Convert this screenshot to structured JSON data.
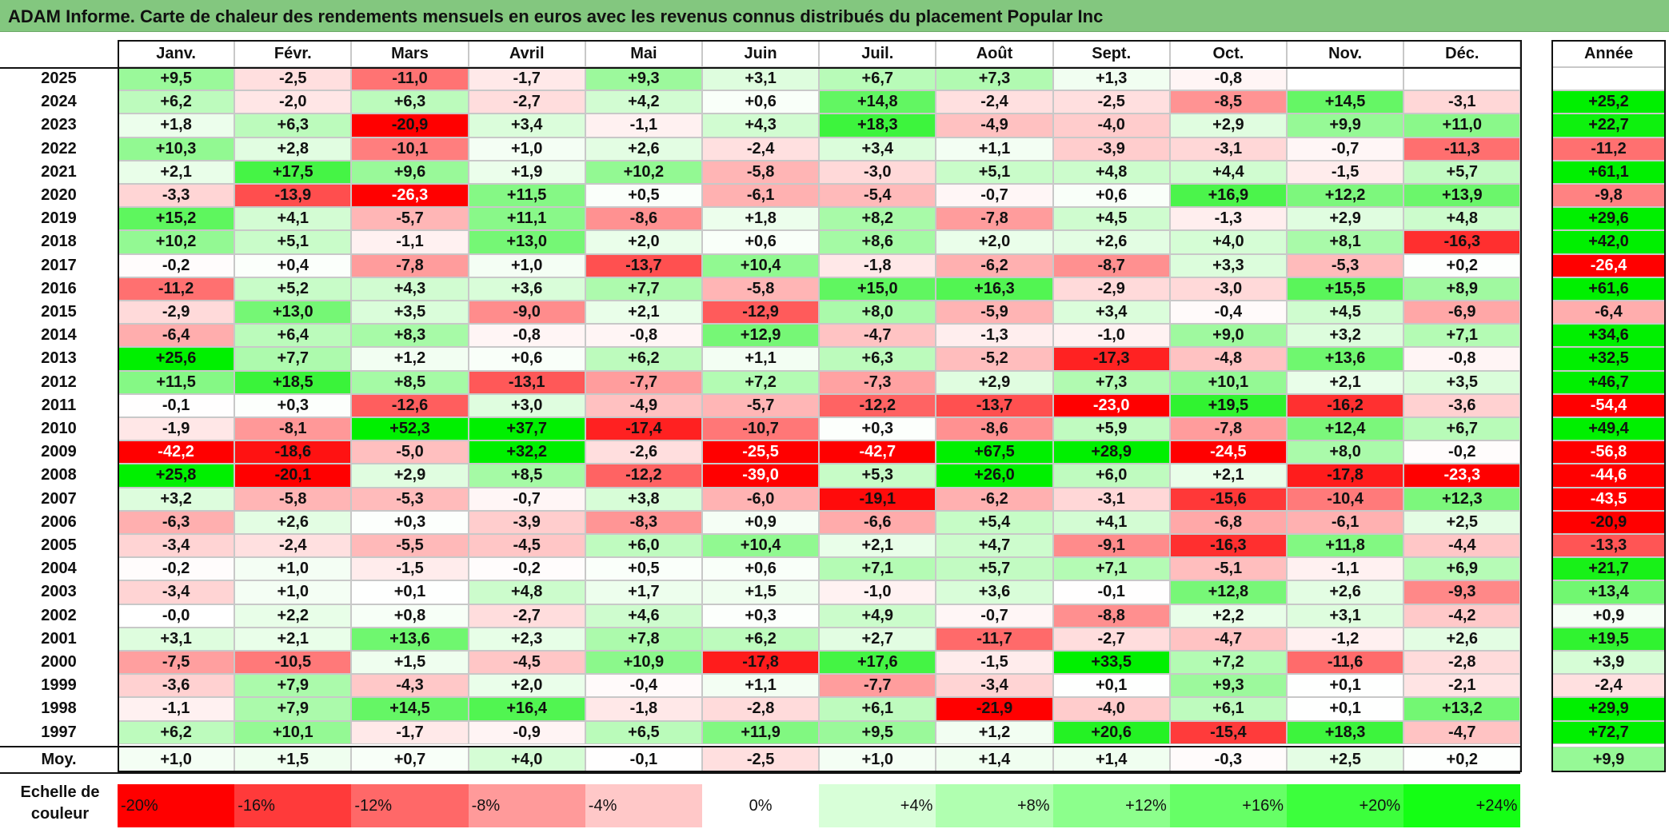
{
  "title": "ADAM Informe. Carte de chaleur des rendements mensuels en euros avec les revenus connus distribués du placement Popular Inc",
  "chart_data": {
    "type": "heatmap",
    "title": "ADAM Informe. Carte de chaleur des rendements mensuels en euros avec les revenus connus distribués du placement Popular Inc",
    "columns": [
      "Janv.",
      "Févr.",
      "Mars",
      "Avril",
      "Mai",
      "Juin",
      "Juil.",
      "Août",
      "Sept.",
      "Oct.",
      "Nov.",
      "Déc."
    ],
    "year_column_label": "Année",
    "rows": [
      {
        "year": "2025",
        "values": [
          "+9,5",
          "-2,5",
          "-11,0",
          "-1,7",
          "+9,3",
          "+3,1",
          "+6,7",
          "+7,3",
          "+1,3",
          "-0,8",
          "",
          ""
        ],
        "annual": ""
      },
      {
        "year": "2024",
        "values": [
          "+6,2",
          "-2,0",
          "+6,3",
          "-2,7",
          "+4,2",
          "+0,6",
          "+14,8",
          "-2,4",
          "-2,5",
          "-8,5",
          "+14,5",
          "-3,1"
        ],
        "annual": "+25,2"
      },
      {
        "year": "2023",
        "values": [
          "+1,8",
          "+6,3",
          "-20,9",
          "+3,4",
          "-1,1",
          "+4,3",
          "+18,3",
          "-4,9",
          "-4,0",
          "+2,9",
          "+9,9",
          "+11,0"
        ],
        "annual": "+22,7"
      },
      {
        "year": "2022",
        "values": [
          "+10,3",
          "+2,8",
          "-10,1",
          "+1,0",
          "+2,6",
          "-2,4",
          "+3,4",
          "+1,1",
          "-3,9",
          "-3,1",
          "-0,7",
          "-11,3"
        ],
        "annual": "-11,2"
      },
      {
        "year": "2021",
        "values": [
          "+2,1",
          "+17,5",
          "+9,6",
          "+1,9",
          "+10,2",
          "-5,8",
          "-3,0",
          "+5,1",
          "+4,8",
          "+4,4",
          "-1,5",
          "+5,7"
        ],
        "annual": "+61,1"
      },
      {
        "year": "2020",
        "values": [
          "-3,3",
          "-13,9",
          "-26,3",
          "+11,5",
          "+0,5",
          "-6,1",
          "-5,4",
          "-0,7",
          "+0,6",
          "+16,9",
          "+12,2",
          "+13,9"
        ],
        "annual": "-9,8"
      },
      {
        "year": "2019",
        "values": [
          "+15,2",
          "+4,1",
          "-5,7",
          "+11,1",
          "-8,6",
          "+1,8",
          "+8,2",
          "-7,8",
          "+4,5",
          "-1,3",
          "+2,9",
          "+4,8"
        ],
        "annual": "+29,6"
      },
      {
        "year": "2018",
        "values": [
          "+10,2",
          "+5,1",
          "-1,1",
          "+13,0",
          "+2,0",
          "+0,6",
          "+8,6",
          "+2,0",
          "+2,6",
          "+4,0",
          "+8,1",
          "-16,3"
        ],
        "annual": "+42,0"
      },
      {
        "year": "2017",
        "values": [
          "-0,2",
          "+0,4",
          "-7,8",
          "+1,0",
          "-13,7",
          "+10,4",
          "-1,8",
          "-6,2",
          "-8,7",
          "+3,3",
          "-5,3",
          "+0,2"
        ],
        "annual": "-26,4"
      },
      {
        "year": "2016",
        "values": [
          "-11,2",
          "+5,2",
          "+4,3",
          "+3,6",
          "+7,7",
          "-5,8",
          "+15,0",
          "+16,3",
          "-2,9",
          "-3,0",
          "+15,5",
          "+8,9"
        ],
        "annual": "+61,6"
      },
      {
        "year": "2015",
        "values": [
          "-2,9",
          "+13,0",
          "+3,5",
          "-9,0",
          "+2,1",
          "-12,9",
          "+8,0",
          "-5,9",
          "+3,4",
          "-0,4",
          "+4,5",
          "-6,9"
        ],
        "annual": "-6,4"
      },
      {
        "year": "2014",
        "values": [
          "-6,4",
          "+6,4",
          "+8,3",
          "-0,8",
          "-0,8",
          "+12,9",
          "-4,7",
          "-1,3",
          "-1,0",
          "+9,0",
          "+3,2",
          "+7,1"
        ],
        "annual": "+34,6"
      },
      {
        "year": "2013",
        "values": [
          "+25,6",
          "+7,7",
          "+1,2",
          "+0,6",
          "+6,2",
          "+1,1",
          "+6,3",
          "-5,2",
          "-17,3",
          "-4,8",
          "+13,6",
          "-0,8"
        ],
        "annual": "+32,5"
      },
      {
        "year": "2012",
        "values": [
          "+11,5",
          "+18,5",
          "+8,5",
          "-13,1",
          "-7,7",
          "+7,2",
          "-7,3",
          "+2,9",
          "+7,3",
          "+10,1",
          "+2,1",
          "+3,5"
        ],
        "annual": "+46,7"
      },
      {
        "year": "2011",
        "values": [
          "-0,1",
          "+0,3",
          "-12,6",
          "+3,0",
          "-4,9",
          "-5,7",
          "-12,2",
          "-13,7",
          "-23,0",
          "+19,5",
          "-16,2",
          "-3,6"
        ],
        "annual": "-54,4"
      },
      {
        "year": "2010",
        "values": [
          "-1,9",
          "-8,1",
          "+52,3",
          "+37,7",
          "-17,4",
          "-10,7",
          "+0,3",
          "-8,6",
          "+5,9",
          "-7,8",
          "+12,4",
          "+6,7"
        ],
        "annual": "+49,4"
      },
      {
        "year": "2009",
        "values": [
          "-42,2",
          "-18,6",
          "-5,0",
          "+32,2",
          "-2,6",
          "-25,5",
          "-42,7",
          "+67,5",
          "+28,9",
          "-24,5",
          "+8,0",
          "-0,2"
        ],
        "annual": "-56,8"
      },
      {
        "year": "2008",
        "values": [
          "+25,8",
          "-20,1",
          "+2,9",
          "+8,5",
          "-12,2",
          "-39,0",
          "+5,3",
          "+26,0",
          "+6,0",
          "+2,1",
          "-17,8",
          "-23,3"
        ],
        "annual": "-44,6"
      },
      {
        "year": "2007",
        "values": [
          "+3,2",
          "-5,8",
          "-5,3",
          "-0,7",
          "+3,8",
          "-6,0",
          "-19,1",
          "-6,2",
          "-3,1",
          "-15,6",
          "-10,4",
          "+12,3"
        ],
        "annual": "-43,5"
      },
      {
        "year": "2006",
        "values": [
          "-6,3",
          "+2,6",
          "+0,3",
          "-3,9",
          "-8,3",
          "+0,9",
          "-6,6",
          "+5,4",
          "+4,1",
          "-6,8",
          "-6,1",
          "+2,5"
        ],
        "annual": "-20,9"
      },
      {
        "year": "2005",
        "values": [
          "-3,4",
          "-2,4",
          "-5,5",
          "-4,5",
          "+6,0",
          "+10,4",
          "+2,1",
          "+4,7",
          "-9,1",
          "-16,3",
          "+11,8",
          "-4,4"
        ],
        "annual": "-13,3"
      },
      {
        "year": "2004",
        "values": [
          "-0,2",
          "+1,0",
          "-1,5",
          "-0,2",
          "+0,5",
          "+0,6",
          "+7,1",
          "+5,7",
          "+7,1",
          "-5,1",
          "-1,1",
          "+6,9"
        ],
        "annual": "+21,7"
      },
      {
        "year": "2003",
        "values": [
          "-3,4",
          "+1,0",
          "+0,1",
          "+4,8",
          "+1,7",
          "+1,5",
          "-1,0",
          "+3,6",
          "-0,1",
          "+12,8",
          "+2,6",
          "-9,3"
        ],
        "annual": "+13,4"
      },
      {
        "year": "2002",
        "values": [
          "-0,0",
          "+2,2",
          "+0,8",
          "-2,7",
          "+4,6",
          "+0,3",
          "+4,9",
          "-0,7",
          "-8,8",
          "+2,2",
          "+3,1",
          "-4,2"
        ],
        "annual": "+0,9"
      },
      {
        "year": "2001",
        "values": [
          "+3,1",
          "+2,1",
          "+13,6",
          "+2,3",
          "+7,8",
          "+6,2",
          "+2,7",
          "-11,7",
          "-2,7",
          "-4,7",
          "-1,2",
          "+2,6"
        ],
        "annual": "+19,5"
      },
      {
        "year": "2000",
        "values": [
          "-7,5",
          "-10,5",
          "+1,5",
          "-4,5",
          "+10,9",
          "-17,8",
          "+17,6",
          "-1,5",
          "+33,5",
          "+7,2",
          "-11,6",
          "-2,8"
        ],
        "annual": "+3,9"
      },
      {
        "year": "1999",
        "values": [
          "-3,6",
          "+7,9",
          "-4,3",
          "+2,0",
          "-0,4",
          "+1,1",
          "-7,7",
          "-3,4",
          "+0,1",
          "+9,3",
          "+0,1",
          "-2,1"
        ],
        "annual": "-2,4"
      },
      {
        "year": "1998",
        "values": [
          "-1,1",
          "+7,9",
          "+14,5",
          "+16,4",
          "-1,8",
          "-2,8",
          "+6,1",
          "-21,9",
          "-4,0",
          "+6,1",
          "+0,1",
          "+13,2"
        ],
        "annual": "+29,9"
      },
      {
        "year": "1997",
        "values": [
          "+6,2",
          "+10,1",
          "-1,7",
          "-0,9",
          "+6,5",
          "+11,9",
          "+9,5",
          "+1,2",
          "+20,6",
          "-15,4",
          "+18,3",
          "-4,7"
        ],
        "annual": "+72,7"
      }
    ],
    "average": {
      "label": "Moy.",
      "values": [
        "+1,0",
        "+1,5",
        "+0,7",
        "+4,0",
        "-0,1",
        "-2,5",
        "+1,0",
        "+1,4",
        "+1,4",
        "-0,3",
        "+2,5",
        "+0,2"
      ],
      "annual": "+9,9"
    },
    "scale": {
      "label": "Echelle de couleur",
      "labels": [
        "-20%",
        "-16%",
        "-12%",
        "-8%",
        "-4%",
        "0%",
        "+4%",
        "+8%",
        "+12%",
        "+16%",
        "+20%",
        "+24%"
      ],
      "colors": [
        "#ff0000",
        "#ff3a3a",
        "#ff6868",
        "#ff9a9a",
        "#ffc8c8",
        "#ffffff",
        "#d8ffd8",
        "#b0ffb0",
        "#8cff8c",
        "#66ff66",
        "#3cff3c",
        "#14ff14"
      ]
    }
  }
}
